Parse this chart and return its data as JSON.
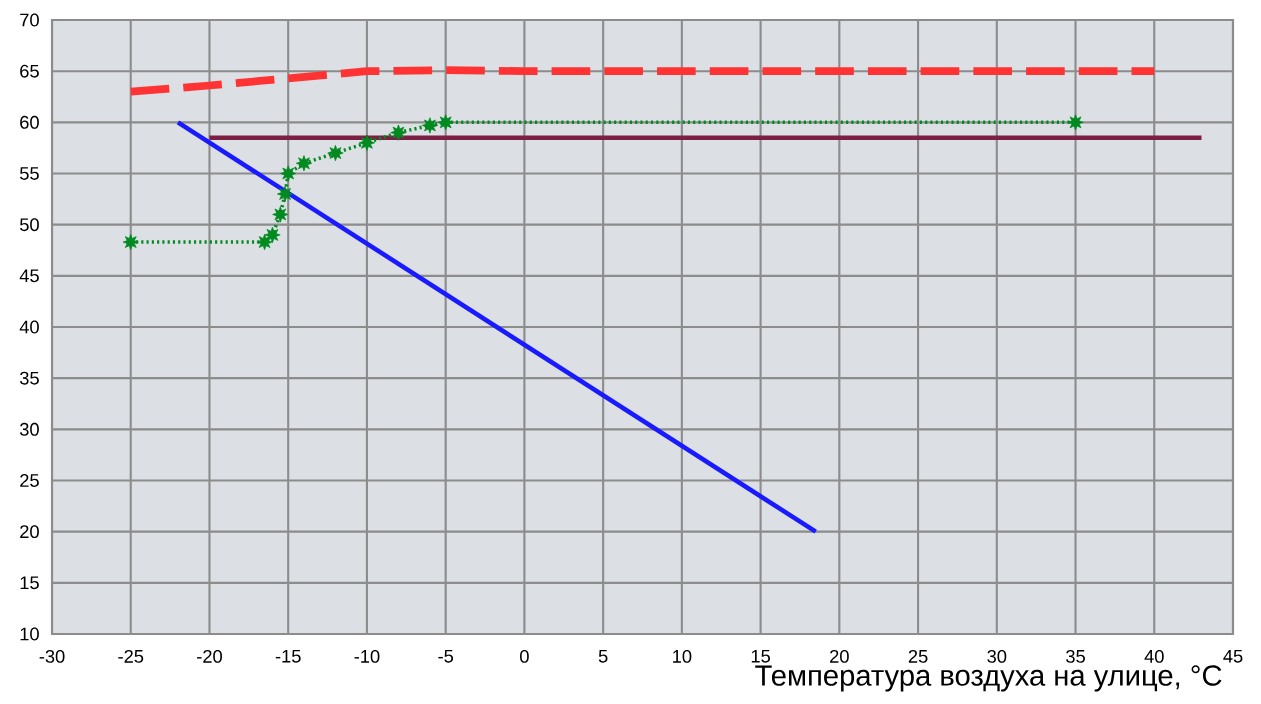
{
  "chart_data": {
    "type": "line",
    "xlabel": "Температура воздуха на улице, °C",
    "xlim": [
      -30,
      45
    ],
    "xticks": [
      -30,
      -25,
      -20,
      -15,
      -10,
      -5,
      0,
      5,
      10,
      15,
      20,
      25,
      30,
      35,
      40,
      45
    ],
    "ylim": [
      10,
      70
    ],
    "yticks": [
      10,
      15,
      20,
      25,
      30,
      35,
      40,
      45,
      50,
      55,
      60,
      65,
      70
    ],
    "grid": true,
    "series": [
      {
        "color": "#ff3333",
        "line_style": "dashed",
        "marker": "none",
        "x": [
          -25,
          -20,
          -15,
          -10,
          -5,
          0,
          40
        ],
        "values": [
          63,
          63.6,
          64.3,
          65,
          65.1,
          65,
          65
        ]
      },
      {
        "color": "#7b1f45",
        "line_style": "solid",
        "marker": "none",
        "x": [
          -20,
          43
        ],
        "values": [
          58.5,
          58.5
        ]
      },
      {
        "color": "#008a20",
        "line_style": "dotted",
        "marker": "star",
        "x": [
          -25,
          -16.5,
          -16,
          -15.5,
          -15.2,
          -15,
          -14,
          -12,
          -10,
          -8,
          -6,
          -5,
          35
        ],
        "values": [
          48.3,
          48.3,
          49,
          51,
          53,
          55,
          56,
          57,
          58,
          59,
          59.7,
          60,
          60
        ]
      },
      {
        "color": "#1a1aff",
        "line_style": "solid",
        "marker": "none",
        "x": [
          -22,
          18.5
        ],
        "values": [
          60,
          20
        ]
      }
    ]
  }
}
